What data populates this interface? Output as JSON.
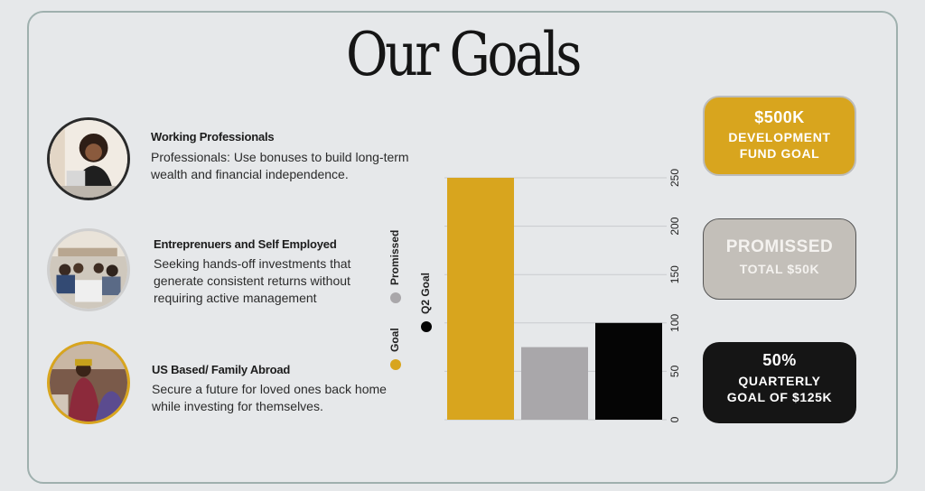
{
  "page": {
    "title": "Our Goals"
  },
  "audiences": [
    {
      "title": "Working Professionals",
      "description": "Professionals: Use bonuses to build long-term wealth and financial independence."
    },
    {
      "title": "Entreprenuers and Self Employed",
      "description": "Seeking hands-off investments that generate consistent returns without requiring active management"
    },
    {
      "title": "US Based/ Family Abroad",
      "description": "Secure a future for loved ones back home while investing for themselves."
    }
  ],
  "goal_boxes": [
    {
      "line1": "$500K",
      "line2": "DEVELOPMENT",
      "line3": "FUND GOAL",
      "bg": "#d8a51e",
      "fg": "#ffffff"
    },
    {
      "line1": "PROMISSED",
      "line2": "TOTAL $50K",
      "line3": "",
      "bg": "#c3bfb9",
      "fg": "#f4f2ef"
    },
    {
      "line1": "50%",
      "line2": "QUARTERLY",
      "line3": "GOAL OF $125K",
      "bg": "#151515",
      "fg": "#ffffff"
    }
  ],
  "colors": {
    "gold": "#d8a51e",
    "gray": "#a9a7aa",
    "black": "#050505"
  },
  "chart_data": {
    "type": "bar",
    "orientation": "vertical (rotated labels)",
    "categories": [
      "Goal",
      "Promissed",
      "Q2 Goal"
    ],
    "values": [
      250,
      75,
      100
    ],
    "colors": [
      "#d8a51e",
      "#a9a7aa",
      "#050505"
    ],
    "ylim": [
      0,
      250
    ],
    "ticks": [
      0,
      50,
      100,
      150,
      200,
      250
    ],
    "grid": true,
    "legend": {
      "placement": "left",
      "entries": [
        "Goal",
        "Promissed",
        "Q2 Goal"
      ]
    },
    "title": "",
    "xlabel": "",
    "ylabel": ""
  }
}
